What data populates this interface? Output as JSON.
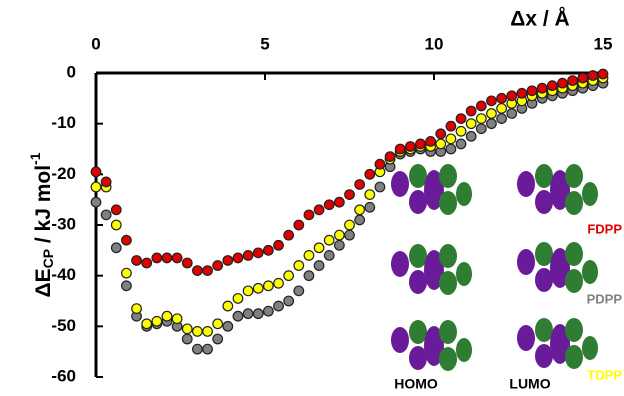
{
  "chart_data": {
    "type": "scatter",
    "x_label": "Δx / Å",
    "y_label": {
      "main": "ΔE",
      "sub": "CP",
      "rest": " / kJ mol",
      "sup": "-1"
    },
    "x": [
      0,
      0.3,
      0.6,
      0.9,
      1.2,
      1.5,
      1.8,
      2.1,
      2.4,
      2.7,
      3.0,
      3.3,
      3.6,
      3.9,
      4.2,
      4.5,
      4.8,
      5.1,
      5.4,
      5.7,
      6.0,
      6.3,
      6.6,
      6.9,
      7.2,
      7.5,
      7.8,
      8.1,
      8.4,
      8.7,
      9.0,
      9.3,
      9.6,
      9.9,
      10.2,
      10.5,
      10.8,
      11.1,
      11.4,
      11.7,
      12.0,
      12.3,
      12.6,
      12.9,
      13.2,
      13.5,
      13.8,
      14.1,
      14.4,
      14.7,
      15.0
    ],
    "series": [
      {
        "name": "PDPP",
        "color": "#808080",
        "values": [
          -25.5,
          -28,
          -34.5,
          -42,
          -48,
          -50,
          -49.5,
          -49,
          -50,
          -52.5,
          -54.5,
          -54.5,
          -52.5,
          -50,
          -48,
          -47.5,
          -47.5,
          -47,
          -46,
          -45,
          -43,
          -40,
          -38,
          -36,
          -34,
          -32,
          -29,
          -26.5,
          -22.5,
          -18.5,
          -16,
          -15.5,
          -15,
          -15.5,
          -15.5,
          -15,
          -14,
          -12.5,
          -11,
          -10,
          -9,
          -8,
          -7,
          -6,
          -5,
          -4.5,
          -4,
          -3.5,
          -3,
          -2.5,
          -2
        ]
      },
      {
        "name": "TDPP",
        "color": "#ffff00",
        "values": [
          -22.5,
          -22.5,
          -30,
          -39.5,
          -46.5,
          -49.5,
          -49,
          -48,
          -48.5,
          -50.5,
          -51,
          -51,
          -49.5,
          -46,
          -44.5,
          -43,
          -42.5,
          -42,
          -41.5,
          -40,
          -38,
          -36,
          -34.5,
          -33,
          -32,
          -30,
          -27,
          -24,
          -19.5,
          -17,
          -15.5,
          -15,
          -14.5,
          -14.5,
          -14,
          -13,
          -11.5,
          -10,
          -9,
          -8,
          -7,
          -6,
          -5.5,
          -4.5,
          -4,
          -3.5,
          -3,
          -2.5,
          -2,
          -1.5,
          -1
        ]
      },
      {
        "name": "FDPP",
        "color": "#e00000",
        "values": [
          -19.5,
          -21.5,
          -27,
          -33,
          -37,
          -37.5,
          -36.5,
          -36.5,
          -36.5,
          -37.5,
          -39,
          -39,
          -38,
          -37,
          -36.5,
          -36,
          -35.5,
          -35,
          -34,
          -32,
          -30,
          -28,
          -27,
          -26,
          -25.5,
          -24,
          -22,
          -20,
          -18,
          -16.5,
          -15,
          -14.5,
          -14,
          -13.5,
          -12,
          -10.5,
          -9,
          -7.5,
          -6.5,
          -5.5,
          -5,
          -4.5,
          -4,
          -3.5,
          -3,
          -2.5,
          -2,
          -1.5,
          -1,
          -0.5,
          -0.2
        ]
      }
    ],
    "orbital_labels": [
      "HOMO",
      "LUMO"
    ],
    "xlim": [
      0,
      15
    ],
    "ylim": [
      -60,
      0
    ],
    "xticks": [
      0,
      5,
      10,
      15
    ],
    "yticks": [
      0,
      -10,
      -20,
      -30,
      -40,
      -50,
      -60
    ]
  }
}
